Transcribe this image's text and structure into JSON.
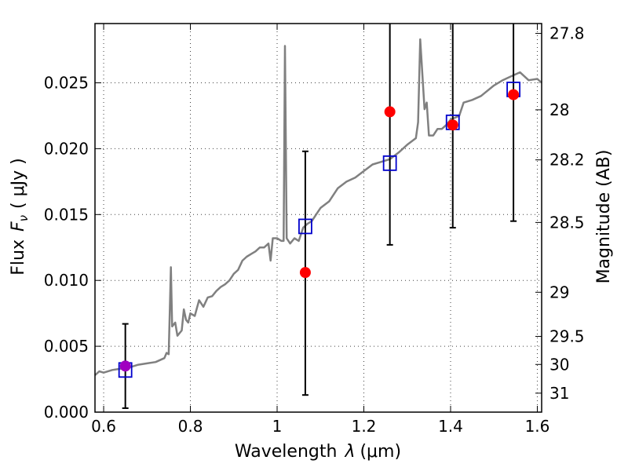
{
  "chart_data": {
    "type": "scatter",
    "xlabel_prefix": "Wavelength",
    "xlabel_symbol": "λ",
    "xlabel_unit": "(μm)",
    "ylabel_prefix": "Flux",
    "ylabel_symbol": "F",
    "ylabel_subscript": "ν",
    "ylabel_unit": "( μJy )",
    "y2label": "Magnitude (AB)",
    "xlim": [
      0.58,
      1.61
    ],
    "ylim": [
      0.0,
      0.0295
    ],
    "grid": true,
    "x_ticks": [
      {
        "value": 0.6,
        "label": "0.6"
      },
      {
        "value": 0.8,
        "label": "0.8"
      },
      {
        "value": 1.0,
        "label": "1"
      },
      {
        "value": 1.2,
        "label": "1.2"
      },
      {
        "value": 1.4,
        "label": "1.4"
      },
      {
        "value": 1.6,
        "label": "1.6"
      }
    ],
    "y_ticks": [
      {
        "value": 0.0,
        "label": "0.000"
      },
      {
        "value": 0.005,
        "label": "0.005"
      },
      {
        "value": 0.01,
        "label": "0.010"
      },
      {
        "value": 0.015,
        "label": "0.015"
      },
      {
        "value": 0.02,
        "label": "0.020"
      },
      {
        "value": 0.025,
        "label": "0.025"
      }
    ],
    "y2_ticks": [
      {
        "flux": 0.02875,
        "label": "27.8"
      },
      {
        "flux": 0.02295,
        "label": "28"
      },
      {
        "flux": 0.01915,
        "label": "28.2"
      },
      {
        "flux": 0.0144,
        "label": "28.5"
      },
      {
        "flux": 0.0091,
        "label": "29"
      },
      {
        "flux": 0.00575,
        "label": "29.5"
      },
      {
        "flux": 0.00362,
        "label": "30"
      },
      {
        "flux": 0.00144,
        "label": "31"
      }
    ],
    "series": [
      {
        "kind": "line",
        "color": "#808080",
        "points": [
          [
            0.58,
            0.0028
          ],
          [
            0.59,
            0.0031
          ],
          [
            0.6,
            0.003
          ],
          [
            0.62,
            0.0032
          ],
          [
            0.64,
            0.0033
          ],
          [
            0.66,
            0.0034
          ],
          [
            0.68,
            0.0036
          ],
          [
            0.7,
            0.0037
          ],
          [
            0.72,
            0.0038
          ],
          [
            0.74,
            0.0041
          ],
          [
            0.745,
            0.0045
          ],
          [
            0.75,
            0.0044
          ],
          [
            0.755,
            0.011
          ],
          [
            0.758,
            0.0065
          ],
          [
            0.765,
            0.0068
          ],
          [
            0.77,
            0.0058
          ],
          [
            0.78,
            0.0062
          ],
          [
            0.785,
            0.0078
          ],
          [
            0.79,
            0.007
          ],
          [
            0.795,
            0.0068
          ],
          [
            0.8,
            0.0075
          ],
          [
            0.81,
            0.0073
          ],
          [
            0.82,
            0.0085
          ],
          [
            0.83,
            0.008
          ],
          [
            0.84,
            0.0087
          ],
          [
            0.85,
            0.0088
          ],
          [
            0.86,
            0.0092
          ],
          [
            0.87,
            0.0095
          ],
          [
            0.88,
            0.0097
          ],
          [
            0.89,
            0.01
          ],
          [
            0.9,
            0.0105
          ],
          [
            0.91,
            0.0108
          ],
          [
            0.92,
            0.0115
          ],
          [
            0.93,
            0.0118
          ],
          [
            0.94,
            0.012
          ],
          [
            0.95,
            0.0122
          ],
          [
            0.96,
            0.0125
          ],
          [
            0.97,
            0.0125
          ],
          [
            0.98,
            0.0128
          ],
          [
            0.985,
            0.0115
          ],
          [
            0.99,
            0.0132
          ],
          [
            1.0,
            0.0132
          ],
          [
            1.01,
            0.013
          ],
          [
            1.015,
            0.013
          ],
          [
            1.018,
            0.0278
          ],
          [
            1.022,
            0.0132
          ],
          [
            1.03,
            0.0128
          ],
          [
            1.04,
            0.0132
          ],
          [
            1.05,
            0.013
          ],
          [
            1.06,
            0.014
          ],
          [
            1.07,
            0.0143
          ],
          [
            1.08,
            0.0145
          ],
          [
            1.09,
            0.015
          ],
          [
            1.1,
            0.0155
          ],
          [
            1.12,
            0.016
          ],
          [
            1.14,
            0.017
          ],
          [
            1.16,
            0.0175
          ],
          [
            1.18,
            0.0178
          ],
          [
            1.2,
            0.0183
          ],
          [
            1.22,
            0.0188
          ],
          [
            1.24,
            0.019
          ],
          [
            1.26,
            0.0192
          ],
          [
            1.28,
            0.0197
          ],
          [
            1.3,
            0.0203
          ],
          [
            1.32,
            0.0208
          ],
          [
            1.325,
            0.022
          ],
          [
            1.33,
            0.0283
          ],
          [
            1.34,
            0.023
          ],
          [
            1.345,
            0.0235
          ],
          [
            1.35,
            0.021
          ],
          [
            1.36,
            0.021
          ],
          [
            1.37,
            0.0215
          ],
          [
            1.38,
            0.0215
          ],
          [
            1.39,
            0.0218
          ],
          [
            1.4,
            0.0222
          ],
          [
            1.42,
            0.0225
          ],
          [
            1.43,
            0.0235
          ],
          [
            1.45,
            0.0237
          ],
          [
            1.47,
            0.024
          ],
          [
            1.5,
            0.0248
          ],
          [
            1.52,
            0.0252
          ],
          [
            1.54,
            0.0255
          ],
          [
            1.56,
            0.0258
          ],
          [
            1.58,
            0.0252
          ],
          [
            1.6,
            0.0253
          ],
          [
            1.61,
            0.025
          ]
        ]
      },
      {
        "kind": "open-square",
        "color": "#0000cc",
        "points": [
          [
            0.65,
            0.0032
          ],
          [
            1.065,
            0.0141
          ],
          [
            1.26,
            0.0189
          ],
          [
            1.405,
            0.022
          ],
          [
            1.545,
            0.0245
          ]
        ]
      },
      {
        "kind": "filled-circle",
        "color": "#ff0000",
        "points": [
          [
            0.65,
            0.0035
          ],
          [
            1.065,
            0.0106
          ],
          [
            1.26,
            0.0228
          ],
          [
            1.405,
            0.0218
          ],
          [
            1.545,
            0.0241
          ]
        ]
      }
    ],
    "error_bars": [
      {
        "x": 0.65,
        "low": 0.0003,
        "high": 0.0067
      },
      {
        "x": 1.065,
        "low": 0.0013,
        "high": 0.0198
      },
      {
        "x": 1.26,
        "low": 0.0127,
        "high": 0.0295
      },
      {
        "x": 1.405,
        "low": 0.014,
        "high": 0.0295
      },
      {
        "x": 1.545,
        "low": 0.0145,
        "high": 0.0295
      }
    ],
    "highlight": {
      "x": 0.65,
      "y": 0.0035,
      "color": "#a000c0"
    }
  }
}
